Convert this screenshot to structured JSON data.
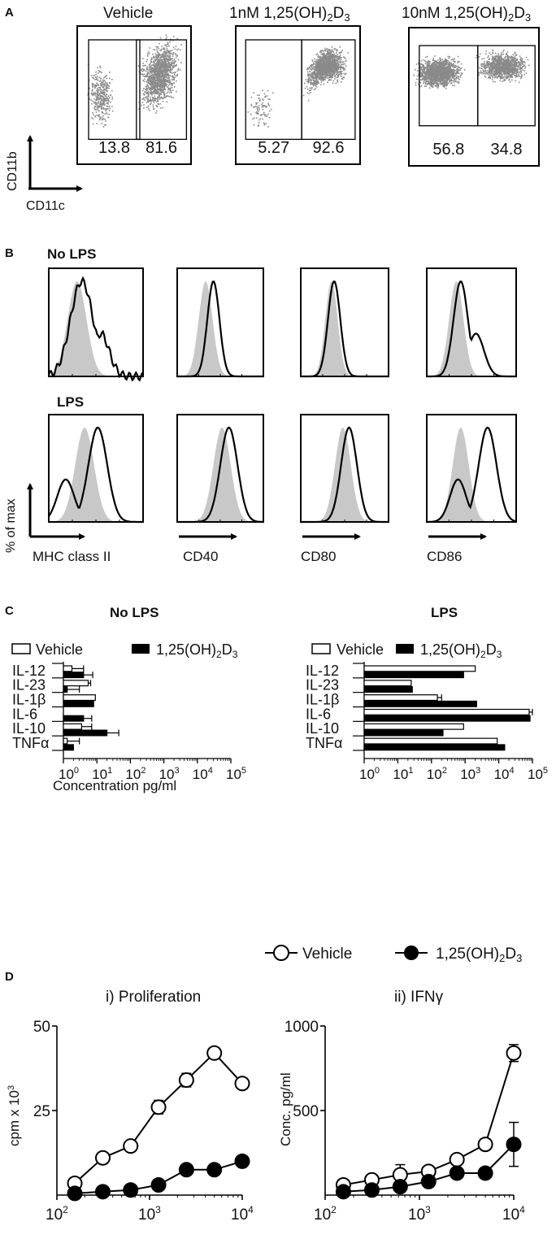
{
  "panel_a": {
    "letter": "A",
    "y_axis": "CD11b",
    "x_axis": "CD11c",
    "plots": [
      {
        "title_prefix": "",
        "title_main": "Vehicle",
        "title_sub": "",
        "gates": [
          "13.8",
          "81.6"
        ]
      },
      {
        "title_prefix": "1nM ",
        "title_main": "1,25(OH)",
        "title_sub": "2",
        "title_d": "D",
        "title_sub2": "3",
        "gates": [
          "5.27",
          "92.6"
        ]
      },
      {
        "title_prefix": "10nM ",
        "title_main": "1,25(OH)",
        "title_sub": "2",
        "title_d": "D",
        "title_sub2": "3",
        "gates": [
          "56.8",
          "34.8"
        ]
      }
    ]
  },
  "panel_b": {
    "letter": "B",
    "row_labels": [
      "No LPS",
      "LPS"
    ],
    "y_axis": "% of max",
    "markers": [
      "MHC class II",
      "CD40",
      "CD80",
      "CD86"
    ]
  },
  "panel_c": {
    "letter": "C",
    "units": "Concentration pg/ml",
    "legend": [
      "Vehicle",
      "1,25(OH)2D3"
    ],
    "tick_labels": [
      "10^0",
      "10^1",
      "10^2",
      "10^3",
      "10^4",
      "10^5"
    ],
    "colors": {
      "vehicle": "#ffffff",
      "treated": "#000000"
    }
  },
  "panel_d": {
    "letter": "D",
    "legend": [
      "Vehicle",
      "1,25(OH)2D3"
    ],
    "left_title": "i) Proliferation",
    "left_ylabel": "cpm x 10^3",
    "right_title": "ii) IFNγ",
    "right_ylabel": "Conc. pg/ml"
  },
  "chart_data": [
    {
      "type": "bar",
      "title": "No LPS",
      "xlabel": "Concentration pg/ml",
      "x_scale": "log",
      "xlim": [
        1,
        100000
      ],
      "categories": [
        "IL-12",
        "IL-23",
        "IL-1β",
        "IL-6",
        "IL-10",
        "TNFα"
      ],
      "series": [
        {
          "name": "Vehicle",
          "values": [
            1.8,
            5.5,
            9,
            0,
            3.5,
            1.3
          ],
          "errors": [
            4,
            6.5,
            0,
            0,
            7,
            3
          ]
        },
        {
          "name": "1,25(OH)2D3",
          "values": [
            4,
            1.3,
            8,
            4,
            20,
            2
          ],
          "errors": [
            7.5,
            3,
            0,
            7,
            45,
            0
          ]
        }
      ]
    },
    {
      "type": "bar",
      "title": "LPS",
      "xlabel": "",
      "x_scale": "log",
      "xlim": [
        1,
        100000
      ],
      "categories": [
        "IL-12",
        "IL-23",
        "IL-1β",
        "IL-6",
        "IL-10",
        "TNFα"
      ],
      "series": [
        {
          "name": "Vehicle",
          "values": [
            2000,
            25,
            150,
            80000,
            900,
            9000
          ],
          "errors": [
            0,
            0,
            200,
            100000,
            0,
            0
          ]
        },
        {
          "name": "1,25(OH)2D3",
          "values": [
            900,
            27,
            2200,
            85000,
            220,
            15000
          ],
          "errors": [
            0,
            0,
            0,
            0,
            0,
            0
          ]
        }
      ]
    },
    {
      "type": "line",
      "title": "i) Proliferation",
      "xlabel": "",
      "ylabel": "cpm x 10^3",
      "x_scale": "log",
      "xlim": [
        100,
        10000
      ],
      "ylim": [
        0,
        50
      ],
      "yticks": [
        25,
        50
      ],
      "x": [
        156,
        313,
        625,
        1250,
        2500,
        5000,
        10000
      ],
      "series": [
        {
          "name": "Vehicle",
          "values": [
            3.5,
            11,
            14.5,
            26,
            34,
            42,
            33
          ],
          "errors": [
            0,
            0,
            0,
            2,
            2,
            0,
            0
          ]
        },
        {
          "name": "1,25(OH)2D3",
          "values": [
            0.5,
            1,
            1.5,
            3,
            7.5,
            7.5,
            10
          ],
          "errors": [
            0,
            0,
            0,
            0,
            0,
            0,
            0
          ]
        }
      ]
    },
    {
      "type": "line",
      "title": "ii) IFNγ",
      "xlabel": "",
      "ylabel": "Conc. pg/ml",
      "x_scale": "log",
      "xlim": [
        100,
        10000
      ],
      "ylim": [
        0,
        1000
      ],
      "yticks": [
        500,
        1000
      ],
      "x": [
        156,
        313,
        625,
        1250,
        2500,
        5000,
        10000
      ],
      "series": [
        {
          "name": "Vehicle",
          "values": [
            60,
            90,
            120,
            140,
            210,
            300,
            840
          ],
          "errors": [
            0,
            0,
            60,
            0,
            0,
            0,
            50
          ]
        },
        {
          "name": "1,25(OH)2D3",
          "values": [
            20,
            30,
            50,
            80,
            130,
            130,
            300
          ],
          "errors": [
            0,
            0,
            0,
            0,
            0,
            0,
            130
          ]
        }
      ]
    }
  ]
}
